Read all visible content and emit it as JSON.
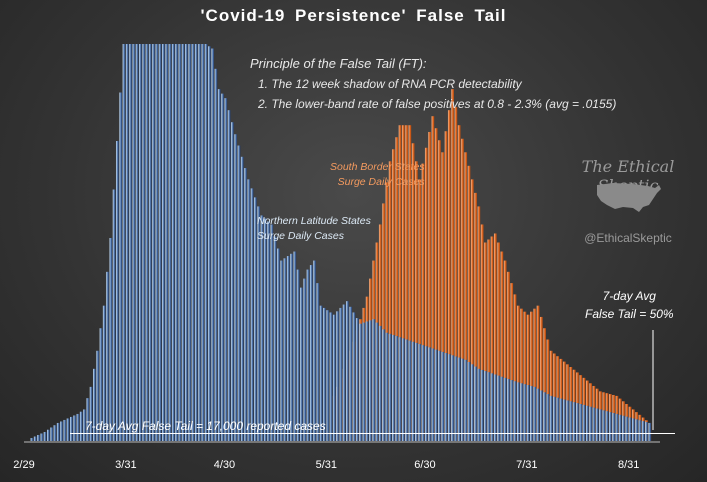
{
  "title": "'Covid-19  Persistence'  False  Tail",
  "principle": {
    "heading": "Principle of the False Tail (FT):",
    "items": [
      "1. The 12  week shadow of RNA PCR detectability",
      "2. The lower-band rate of false positives at 0.8 - 2.3% (avg = .0155)"
    ]
  },
  "brand": {
    "name": "The Ethical Skeptic",
    "handle": "@EthicalSkeptic",
    "icon": "usa-map-icon"
  },
  "colors": {
    "north": "#8fb6dc",
    "north_dark": "#1f3a6e",
    "south": "#d8601a",
    "baseline": "#ffffff"
  },
  "chart_data": {
    "type": "bar",
    "x_ticks": [
      "2/29",
      "3/31",
      "4/30",
      "5/31",
      "6/30",
      "7/31",
      "8/31"
    ],
    "ylim": [
      0,
      100
    ],
    "y_display_max": 88,
    "series": [
      {
        "name": "Northern Latitude States Surge Daily Cases",
        "label_lines": [
          "Northern Latitude States",
          "Surge Daily Cases"
        ],
        "x": [
          0,
          6,
          10,
          13,
          16,
          18,
          20,
          22,
          24,
          26,
          30,
          34,
          40,
          45,
          50,
          55,
          57,
          59,
          61,
          64,
          68,
          72,
          75,
          78,
          80,
          82,
          84,
          86,
          88,
          90,
          94,
          98,
          102,
          106,
          110,
          114,
          118,
          122,
          126,
          130,
          134,
          138,
          142,
          146,
          150,
          155,
          160,
          165,
          170,
          175,
          180,
          185,
          190
        ],
        "values": [
          0,
          2,
          4,
          5,
          6,
          7,
          12,
          20,
          30,
          45,
          88,
          88,
          88,
          88,
          88,
          88,
          87,
          78,
          76,
          68,
          58,
          50,
          48,
          40,
          41,
          42,
          34,
          38,
          40,
          30,
          28,
          31,
          26,
          27,
          24,
          23,
          22,
          21,
          20,
          19,
          18,
          16,
          15,
          14,
          13,
          12,
          10,
          9,
          8,
          7,
          6,
          5,
          4
        ]
      },
      {
        "name": "South Border States Surge Daily Cases",
        "label_lines": [
          "South Border States",
          "Surge Daily Cases"
        ],
        "x": [
          94,
          100,
          104,
          108,
          111,
          114,
          117,
          120,
          124,
          127,
          130,
          132,
          135,
          138,
          140,
          143,
          146,
          150,
          153,
          156,
          160,
          165,
          170,
          175,
          180,
          185,
          190
        ],
        "values": [
          10,
          22,
          32,
          48,
          62,
          70,
          70,
          58,
          72,
          64,
          78,
          70,
          61,
          52,
          44,
          46,
          40,
          30,
          28,
          30,
          20,
          17,
          14,
          11,
          10,
          7,
          4
        ]
      }
    ],
    "annotations": {
      "avg_label_lines": [
        "7-day Avg",
        "False Tail = 50%"
      ],
      "bottom_label": "7-day Avg False Tail = 17,000  reported cases",
      "baseline_value": 1
    }
  }
}
